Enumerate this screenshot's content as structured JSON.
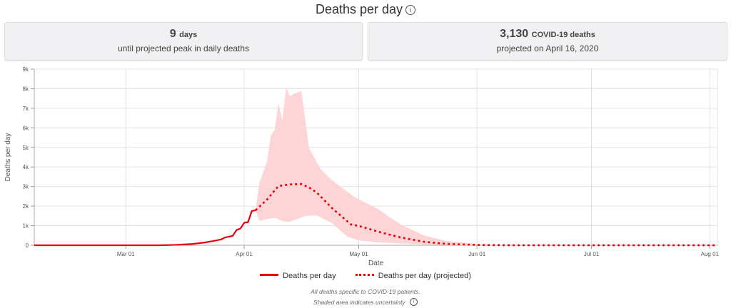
{
  "title": "Deaths per day",
  "title_icon": "info-icon",
  "cards": [
    {
      "value": "9",
      "unit": "days",
      "sub": "until projected peak in daily deaths"
    },
    {
      "value": "3,130",
      "unit": "COVID-19 deaths",
      "sub": "projected on April 16, 2020"
    }
  ],
  "notes": [
    "All deaths specific to COVID-19 patients.",
    "Shaded area indicates uncertainty"
  ],
  "note_icon": "info-icon",
  "colors": {
    "line": "#e8000b",
    "band": "#fdd5d6",
    "grid": "#e3e3e3"
  },
  "chart_data": {
    "type": "line",
    "xlabel": "Date",
    "ylabel": "Deaths per day",
    "xlim": [
      "2020-02-06",
      "2020-08-03"
    ],
    "ylim": [
      0,
      9000
    ],
    "grid": true,
    "legend_placement": "bottom",
    "x_ticks": [
      {
        "date": "2020-03-01",
        "label": "Mar 01"
      },
      {
        "date": "2020-04-01",
        "label": "Apr 01"
      },
      {
        "date": "2020-05-01",
        "label": "May 01"
      },
      {
        "date": "2020-06-01",
        "label": "Jun 01"
      },
      {
        "date": "2020-07-01",
        "label": "Jul 01"
      },
      {
        "date": "2020-08-01",
        "label": "Aug 01"
      }
    ],
    "y_ticks": [
      {
        "value": 0,
        "label": "0"
      },
      {
        "value": 1000,
        "label": "1k"
      },
      {
        "value": 2000,
        "label": "2k"
      },
      {
        "value": 3000,
        "label": "3k"
      },
      {
        "value": 4000,
        "label": "4k"
      },
      {
        "value": 5000,
        "label": "5k"
      },
      {
        "value": 6000,
        "label": "6k"
      },
      {
        "value": 7000,
        "label": "7k"
      },
      {
        "value": 8000,
        "label": "8k"
      },
      {
        "value": 9000,
        "label": "9k"
      }
    ],
    "series": [
      {
        "name": "Deaths per day",
        "style": "solid",
        "points": [
          [
            "2020-02-06",
            0
          ],
          [
            "2020-03-10",
            0
          ],
          [
            "2020-03-14",
            20
          ],
          [
            "2020-03-18",
            60
          ],
          [
            "2020-03-20",
            100
          ],
          [
            "2020-03-22",
            150
          ],
          [
            "2020-03-24",
            220
          ],
          [
            "2020-03-26",
            300
          ],
          [
            "2020-03-27",
            400
          ],
          [
            "2020-03-29",
            480
          ],
          [
            "2020-03-30",
            780
          ],
          [
            "2020-03-31",
            850
          ],
          [
            "2020-04-01",
            1150
          ],
          [
            "2020-04-02",
            1180
          ],
          [
            "2020-04-03",
            1750
          ],
          [
            "2020-04-04",
            1790
          ]
        ]
      },
      {
        "name": "Deaths per day (projected)",
        "style": "dotted",
        "points": [
          [
            "2020-04-04",
            1790
          ],
          [
            "2020-04-07",
            2340
          ],
          [
            "2020-04-10",
            3030
          ],
          [
            "2020-04-13",
            3110
          ],
          [
            "2020-04-16",
            3130
          ],
          [
            "2020-04-18",
            2950
          ],
          [
            "2020-04-20",
            2700
          ],
          [
            "2020-04-24",
            1900
          ],
          [
            "2020-04-29",
            1060
          ],
          [
            "2020-05-01",
            990
          ],
          [
            "2020-05-06",
            700
          ],
          [
            "2020-05-12",
            400
          ],
          [
            "2020-05-18",
            180
          ],
          [
            "2020-05-24",
            70
          ],
          [
            "2020-06-01",
            15
          ],
          [
            "2020-06-10",
            0
          ],
          [
            "2020-08-03",
            0
          ]
        ]
      }
    ],
    "uncertainty_band": {
      "upper": [
        [
          "2020-04-04",
          1790
        ],
        [
          "2020-04-05",
          3200
        ],
        [
          "2020-04-07",
          4270
        ],
        [
          "2020-04-08",
          5620
        ],
        [
          "2020-04-09",
          5900
        ],
        [
          "2020-04-10",
          7260
        ],
        [
          "2020-04-11",
          6350
        ],
        [
          "2020-04-12",
          8070
        ],
        [
          "2020-04-13",
          7600
        ],
        [
          "2020-04-14",
          7740
        ],
        [
          "2020-04-16",
          7880
        ],
        [
          "2020-04-18",
          4960
        ],
        [
          "2020-04-21",
          3900
        ],
        [
          "2020-04-24",
          3320
        ],
        [
          "2020-04-30",
          2450
        ],
        [
          "2020-05-06",
          1860
        ],
        [
          "2020-05-12",
          1060
        ],
        [
          "2020-05-18",
          510
        ],
        [
          "2020-05-24",
          220
        ],
        [
          "2020-06-01",
          70
        ],
        [
          "2020-06-10",
          0
        ]
      ],
      "lower": [
        [
          "2020-04-04",
          1790
        ],
        [
          "2020-04-05",
          1240
        ],
        [
          "2020-04-07",
          1350
        ],
        [
          "2020-04-09",
          1400
        ],
        [
          "2020-04-11",
          1240
        ],
        [
          "2020-04-13",
          1200
        ],
        [
          "2020-04-15",
          1350
        ],
        [
          "2020-04-17",
          1500
        ],
        [
          "2020-04-20",
          1530
        ],
        [
          "2020-04-24",
          1130
        ],
        [
          "2020-04-28",
          440
        ],
        [
          "2020-05-01",
          250
        ],
        [
          "2020-05-06",
          150
        ],
        [
          "2020-05-12",
          90
        ],
        [
          "2020-05-18",
          40
        ],
        [
          "2020-05-24",
          10
        ],
        [
          "2020-06-01",
          0
        ],
        [
          "2020-06-10",
          0
        ]
      ]
    }
  }
}
